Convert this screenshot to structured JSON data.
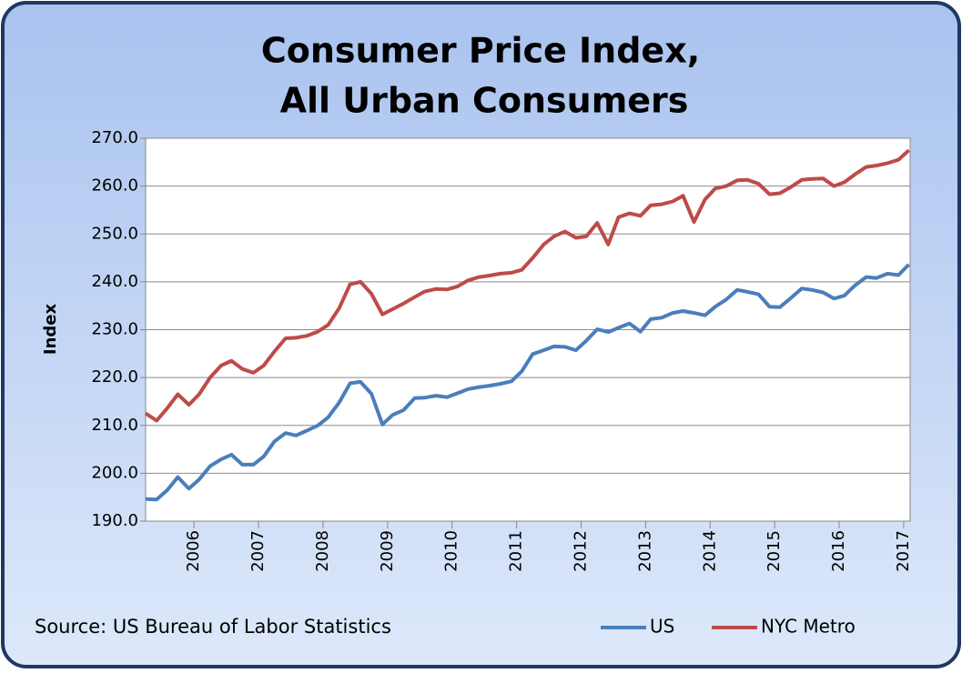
{
  "chart_data": {
    "type": "line",
    "title": [
      "Consumer Price Index,",
      "All Urban Consumers"
    ],
    "y_label": "Index",
    "source": "Source: US Bureau of Labor Statistics",
    "legend": "lower right",
    "grid": true,
    "xlim": [
      2005.25,
      2017.1
    ],
    "xticks": [
      2006,
      2007,
      2008,
      2009,
      2010,
      2011,
      2012,
      2013,
      2014,
      2015,
      2016,
      2017
    ],
    "ylim": [
      190,
      270
    ],
    "yticks": [
      {
        "value": 190,
        "label": "190.0"
      },
      {
        "value": 200,
        "label": "200.0"
      },
      {
        "value": 210,
        "label": "210.0"
      },
      {
        "value": 220,
        "label": "220.0"
      },
      {
        "value": 230,
        "label": "230.0"
      },
      {
        "value": 240,
        "label": "240.0"
      },
      {
        "value": 250,
        "label": "250.0"
      },
      {
        "value": 260,
        "label": "260.0"
      },
      {
        "value": 270,
        "label": "270.0"
      }
    ],
    "x": [
      2005.25,
      2005.42,
      2005.58,
      2005.75,
      2005.92,
      2006.08,
      2006.25,
      2006.42,
      2006.58,
      2006.75,
      2006.92,
      2007.08,
      2007.25,
      2007.42,
      2007.58,
      2007.75,
      2007.92,
      2008.08,
      2008.25,
      2008.42,
      2008.58,
      2008.75,
      2008.92,
      2009.08,
      2009.25,
      2009.42,
      2009.58,
      2009.75,
      2009.92,
      2010.08,
      2010.25,
      2010.42,
      2010.58,
      2010.75,
      2010.92,
      2011.08,
      2011.25,
      2011.42,
      2011.58,
      2011.75,
      2011.92,
      2012.08,
      2012.25,
      2012.42,
      2012.58,
      2012.75,
      2012.92,
      2013.08,
      2013.25,
      2013.42,
      2013.58,
      2013.75,
      2013.92,
      2014.08,
      2014.25,
      2014.42,
      2014.58,
      2014.75,
      2014.92,
      2015.08,
      2015.25,
      2015.42,
      2015.58,
      2015.75,
      2015.92,
      2016.08,
      2016.25,
      2016.42,
      2016.58,
      2016.75,
      2016.92,
      2017.08
    ],
    "series": [
      {
        "name": "US",
        "color": "#4a7ebb",
        "values": [
          194.6,
          194.5,
          196.4,
          199.2,
          196.8,
          198.7,
          201.5,
          202.9,
          203.9,
          201.8,
          201.8,
          203.5,
          206.7,
          208.4,
          207.9,
          208.9,
          210.0,
          211.7,
          214.8,
          218.8,
          219.1,
          216.6,
          210.2,
          212.2,
          213.2,
          215.7,
          215.8,
          216.2,
          215.9,
          216.7,
          217.6,
          218.0,
          218.3,
          218.7,
          219.2,
          221.3,
          224.9,
          225.7,
          226.5,
          226.4,
          225.7,
          227.7,
          230.1,
          229.5,
          230.4,
          231.3,
          229.6,
          232.2,
          232.5,
          233.5,
          233.9,
          233.5,
          233.0,
          234.8,
          236.3,
          238.3,
          237.9,
          237.4,
          234.8,
          234.7,
          236.6,
          238.6,
          238.3,
          237.8,
          236.5,
          237.1,
          239.3,
          241.0,
          240.8,
          241.7,
          241.4,
          243.6
        ]
      },
      {
        "name": "NYC Metro",
        "color": "#be4b48",
        "values": [
          212.5,
          211.0,
          213.5,
          216.5,
          214.3,
          216.5,
          220.0,
          222.5,
          223.5,
          221.8,
          221.0,
          222.5,
          225.5,
          228.2,
          228.3,
          228.7,
          229.6,
          231.0,
          234.5,
          239.5,
          240.0,
          237.5,
          233.2,
          234.3,
          235.5,
          236.8,
          238.0,
          238.5,
          238.4,
          239.0,
          240.3,
          241.0,
          241.3,
          241.7,
          241.9,
          242.5,
          245.0,
          247.8,
          249.5,
          250.5,
          249.2,
          249.5,
          252.3,
          247.8,
          253.5,
          254.3,
          253.8,
          256.0,
          256.2,
          256.8,
          258.0,
          252.5,
          257.2,
          259.5,
          260.0,
          261.2,
          261.3,
          260.5,
          258.3,
          258.5,
          259.8,
          261.3,
          261.5,
          261.6,
          260.0,
          260.8,
          262.5,
          264.0,
          264.3,
          264.8,
          265.5,
          267.5
        ]
      }
    ]
  }
}
